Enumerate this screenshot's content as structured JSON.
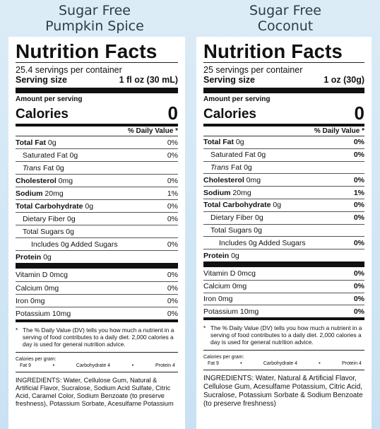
{
  "left": {
    "heading_line1": "Sugar Free",
    "heading_line2": "Pumpkin Spice",
    "title": "Nutrition Facts",
    "servings": "25.4 servings per container",
    "serving_size_label": "Serving size",
    "serving_size_value": "1 fl oz (30 mL)",
    "amount_per_serving": "Amount per serving",
    "calories_label": "Calories",
    "calories_value": "0",
    "dv_header": "% Daily Value *",
    "nutrients": [
      {
        "bold": "Total Fat",
        "rest": " 0g",
        "dv": "0%"
      },
      {
        "bold": "",
        "rest": "Saturated Fat 0g",
        "dv": "0%"
      },
      {
        "bold": "",
        "italic": "Trans",
        "rest": " Fat 0g",
        "dv": ""
      },
      {
        "bold": "Cholesterol",
        "rest": " 0mg",
        "dv": "0%"
      },
      {
        "bold": "Sodium",
        "rest": " 20mg",
        "dv": "1%"
      },
      {
        "bold": "Total Carbohydrate",
        "rest": " 0g",
        "dv": "0%"
      },
      {
        "bold": "",
        "rest": "Dietary Fiber 0g",
        "dv": "0%"
      },
      {
        "bold": "",
        "rest": "Total Sugars 0g",
        "dv": ""
      },
      {
        "bold": "",
        "rest": "Includes 0g Added Sugars",
        "dv": "0%"
      },
      {
        "bold": "Protein",
        "rest": " 0g",
        "dv": ""
      }
    ],
    "vitamins": [
      {
        "name": "Vitamin D 0mcg",
        "dv": "0%"
      },
      {
        "name": "Calcium 0mg",
        "dv": "0%"
      },
      {
        "name": "Iron 0mg",
        "dv": "0%"
      },
      {
        "name": "Potassium 10mg",
        "dv": "0%"
      }
    ],
    "footnote_star": "*",
    "footnote": "The % Daily Value (DV) tells you how much a nutrient in a serving of food contributes to a daily diet. 2,000 calories a day is used for general nutrition advice.",
    "cal_per_gram_label": "Calories per gram:",
    "cal_per_gram": [
      "Fat 9",
      "•",
      "Carbohydrate 4",
      "•",
      "Protein 4"
    ],
    "ingredients": "INGREDIENTS: Water, Cellulose Gum, Natural & Artificial Flavor, Sucralose, Sodium  Acid Sulfate, Citric Acid, Caramel Color,  Sodium Benzoate (to preserve freshness),  Potassium Sorbate, Acesulfame Potassium"
  },
  "right": {
    "heading_line1": "Sugar Free",
    "heading_line2": "Coconut",
    "title": "Nutrition Facts",
    "servings": "25 servings per container",
    "serving_size_label": "Serving size",
    "serving_size_value": "1 oz (30g)",
    "amount_per_serving": "Amount per serving",
    "calories_label": "Calories",
    "calories_value": "0",
    "dv_header": "% Daily Value *",
    "nutrients": [
      {
        "bold": "Total Fat",
        "rest": " 0g",
        "dv": "0%"
      },
      {
        "bold": "",
        "rest": "Saturated Fat 0g",
        "dv": "0%"
      },
      {
        "bold": "",
        "italic": "Trans",
        "rest": " Fat 0g",
        "dv": ""
      },
      {
        "bold": "Cholesterol",
        "rest": " 0mg",
        "dv": "0%"
      },
      {
        "bold": "Sodium",
        "rest": " 20mg",
        "dv": "1%"
      },
      {
        "bold": "Total Carbohydrate",
        "rest": " 0g",
        "dv": "0%"
      },
      {
        "bold": "",
        "rest": "Dietary Fiber 0g",
        "dv": "0%"
      },
      {
        "bold": "",
        "rest": "Total Sugars 0g",
        "dv": ""
      },
      {
        "bold": "",
        "rest": "Includes 0g Added Sugars",
        "dv": "0%"
      },
      {
        "bold": "Protein",
        "rest": " 0g",
        "dv": ""
      }
    ],
    "vitamins": [
      {
        "name": "Vitamin D 0mcg",
        "dv": "0%"
      },
      {
        "name": "Calcium 0mg",
        "dv": "0%"
      },
      {
        "name": "Iron 0mg",
        "dv": "0%"
      },
      {
        "name": "Potassium 10mg",
        "dv": "0%"
      }
    ],
    "footnote_star": "*",
    "footnote": "The % Daily Value (DV) tells you how much a nutrient in a serving of food contributes to a daily diet. 2,000 calories a day is used for general nutrition advice.",
    "cal_per_gram_label": "Calories per gram:",
    "cal_per_gram": [
      "Fat 9",
      "•",
      "Carbohydrate 4",
      "•",
      "Protein 4"
    ],
    "ingredients": "INGREDIENTS: Water, Natural & Artificial Flavor, Cellulose Gum, Acesulfame Potassium, Citric Acid, Sucralose, Potassium Sorbate & Sodium Benzoate (to preserve freshness)"
  }
}
